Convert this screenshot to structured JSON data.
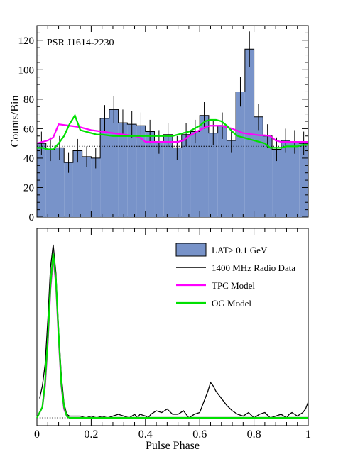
{
  "chart_data": [
    {
      "type": "bar",
      "title": "",
      "annotation": "PSR J1614-2230",
      "xlabel": "",
      "ylabel": "Counts/Bin",
      "xlim": [
        0,
        1
      ],
      "ylim": [
        0,
        130
      ],
      "yticks": [
        0,
        20,
        40,
        60,
        80,
        100,
        120
      ],
      "grid": false,
      "legend": "none",
      "bin_width": 0.0333,
      "colors": {
        "hist_fill": "#7893c9",
        "hist_line": "#000000",
        "tpc": "#ff00ff",
        "og": "#00e000"
      },
      "background_level": 48,
      "histogram": {
        "name": "LAT ≥ 0.1 GeV",
        "x": [
          0.0,
          0.0333,
          0.0667,
          0.1,
          0.1333,
          0.1667,
          0.2,
          0.2333,
          0.2667,
          0.3,
          0.3333,
          0.3667,
          0.4,
          0.4333,
          0.4667,
          0.5,
          0.5333,
          0.5667,
          0.6,
          0.6333,
          0.6667,
          0.7,
          0.7333,
          0.7667,
          0.8,
          0.8333,
          0.8667,
          0.9,
          0.9333,
          0.9667
        ],
        "values": [
          50,
          46,
          47,
          37,
          45,
          41,
          40,
          67,
          73,
          64,
          63,
          62,
          58,
          51,
          56,
          47,
          56,
          58,
          69,
          57,
          62,
          52,
          85,
          114,
          68,
          55,
          46,
          52,
          51,
          50
        ],
        "errors": [
          8,
          8,
          8,
          7,
          8,
          7,
          7,
          9,
          9,
          9,
          9,
          9,
          8,
          8,
          8,
          8,
          8,
          8,
          9,
          8,
          9,
          8,
          10,
          12,
          9,
          8,
          8,
          8,
          8,
          8
        ]
      },
      "series": [
        {
          "name": "TPC Model",
          "x": [
            0.0,
            0.02,
            0.04,
            0.06,
            0.08,
            0.1,
            0.12,
            0.14,
            0.16,
            0.18,
            0.2,
            0.22,
            0.24,
            0.26,
            0.28,
            0.3,
            0.32,
            0.34,
            0.36,
            0.38,
            0.4,
            0.42,
            0.44,
            0.46,
            0.48,
            0.5,
            0.52,
            0.54,
            0.56,
            0.58,
            0.6,
            0.62,
            0.64,
            0.66,
            0.68,
            0.7,
            0.72,
            0.74,
            0.76,
            0.78,
            0.8,
            0.82,
            0.84,
            0.86,
            0.88,
            0.9,
            0.92,
            0.94,
            0.96,
            0.98,
            1.0
          ],
          "y": [
            50,
            51,
            52,
            54,
            63,
            62.5,
            62,
            61.5,
            61,
            60,
            59,
            58.5,
            58,
            57.5,
            57,
            56.5,
            56,
            55.5,
            55,
            54,
            51,
            51,
            51,
            51,
            51,
            51,
            51,
            52,
            55,
            57,
            59,
            61,
            62,
            62,
            62,
            61,
            60,
            58.5,
            57,
            56.5,
            56,
            55.5,
            55.5,
            55,
            52,
            51,
            51,
            51,
            51,
            51,
            51
          ]
        },
        {
          "name": "OG Model",
          "x": [
            0.0,
            0.02,
            0.04,
            0.06,
            0.08,
            0.1,
            0.12,
            0.14,
            0.16,
            0.18,
            0.2,
            0.22,
            0.24,
            0.26,
            0.28,
            0.3,
            0.32,
            0.34,
            0.36,
            0.38,
            0.4,
            0.42,
            0.44,
            0.46,
            0.48,
            0.5,
            0.52,
            0.54,
            0.56,
            0.58,
            0.6,
            0.62,
            0.64,
            0.66,
            0.68,
            0.7,
            0.72,
            0.74,
            0.76,
            0.78,
            0.8,
            0.82,
            0.84,
            0.86,
            0.88,
            0.9,
            0.92,
            0.94,
            0.96,
            0.98,
            1.0
          ],
          "y": [
            47,
            47,
            46,
            46,
            50,
            55,
            63,
            69,
            59,
            58,
            57,
            56,
            56,
            55.5,
            55,
            55,
            55,
            55,
            55,
            55,
            55,
            55,
            55,
            55,
            55,
            55,
            56,
            57,
            58,
            60,
            62,
            65,
            66,
            66,
            65,
            62,
            58,
            55,
            54,
            53,
            52,
            51,
            50,
            47,
            47,
            47,
            48,
            48,
            48,
            49,
            49
          ]
        }
      ]
    },
    {
      "type": "line",
      "title": "",
      "xlabel": "Pulse Phase",
      "ylabel": "",
      "xlim": [
        0,
        1
      ],
      "ylim": [
        0,
        1.05
      ],
      "xticks": [
        0,
        0.2,
        0.4,
        0.6,
        0.8,
        1
      ],
      "xtick_labels": [
        "0",
        "0.2",
        "0.4",
        "0.6",
        "0.8",
        "1"
      ],
      "grid": false,
      "legend": "top-right",
      "legend_entries": [
        {
          "label": "LAT≥ 0.1 GeV",
          "kind": "box",
          "color": "#7893c9"
        },
        {
          "label": "1400 MHz Radio Data",
          "kind": "line",
          "color": "#000000"
        },
        {
          "label": "TPC Model",
          "kind": "line",
          "color": "#ff00ff"
        },
        {
          "label": "OG Model",
          "kind": "line",
          "color": "#00e000"
        }
      ],
      "series": [
        {
          "name": "1400 MHz Radio Data",
          "x": [
            0.01,
            0.02,
            0.03,
            0.04,
            0.05,
            0.06,
            0.07,
            0.08,
            0.09,
            0.1,
            0.11,
            0.12,
            0.14,
            0.16,
            0.18,
            0.2,
            0.22,
            0.24,
            0.26,
            0.28,
            0.3,
            0.32,
            0.34,
            0.36,
            0.37,
            0.38,
            0.4,
            0.41,
            0.42,
            0.44,
            0.46,
            0.48,
            0.5,
            0.52,
            0.54,
            0.56,
            0.58,
            0.6,
            0.61,
            0.62,
            0.63,
            0.64,
            0.65,
            0.66,
            0.68,
            0.7,
            0.72,
            0.74,
            0.76,
            0.78,
            0.8,
            0.82,
            0.84,
            0.86,
            0.88,
            0.9,
            0.92,
            0.93,
            0.94,
            0.96,
            0.98,
            0.99,
            1.0
          ],
          "y": [
            0.11,
            0.18,
            0.3,
            0.55,
            0.85,
            0.98,
            0.82,
            0.5,
            0.24,
            0.08,
            0.02,
            0.01,
            0.01,
            0.01,
            0.0,
            0.01,
            0.0,
            0.01,
            0.0,
            0.01,
            0.02,
            0.01,
            0.0,
            0.02,
            0.0,
            0.02,
            0.01,
            0.0,
            0.02,
            0.04,
            0.03,
            0.05,
            0.02,
            0.02,
            0.04,
            0.0,
            0.02,
            0.03,
            0.07,
            0.11,
            0.15,
            0.2,
            0.18,
            0.15,
            0.11,
            0.07,
            0.04,
            0.02,
            0.01,
            0.03,
            0.0,
            0.02,
            0.03,
            0.0,
            0.01,
            0.02,
            0.0,
            0.02,
            0.03,
            0.01,
            0.03,
            0.05,
            0.09
          ]
        },
        {
          "name": "TPC Model",
          "x": [
            0.0,
            0.02,
            0.03,
            0.04,
            0.05,
            0.06,
            0.07,
            0.08,
            0.09,
            0.1,
            0.11,
            0.12,
            0.2,
            0.4,
            0.6,
            0.8,
            1.0
          ],
          "y": [
            0.0,
            0.06,
            0.18,
            0.42,
            0.73,
            0.91,
            0.76,
            0.45,
            0.18,
            0.05,
            0.01,
            0.0,
            0.0,
            0.0,
            0.0,
            0.0,
            0.0
          ]
        },
        {
          "name": "OG Model",
          "x": [
            0.0,
            0.02,
            0.03,
            0.04,
            0.05,
            0.06,
            0.07,
            0.08,
            0.09,
            0.1,
            0.11,
            0.12,
            0.2,
            0.4,
            0.6,
            0.8,
            1.0
          ],
          "y": [
            0.0,
            0.06,
            0.2,
            0.44,
            0.75,
            0.93,
            0.78,
            0.47,
            0.19,
            0.06,
            0.01,
            0.0,
            0.0,
            0.0,
            0.0,
            0.0,
            0.0
          ]
        }
      ]
    }
  ]
}
